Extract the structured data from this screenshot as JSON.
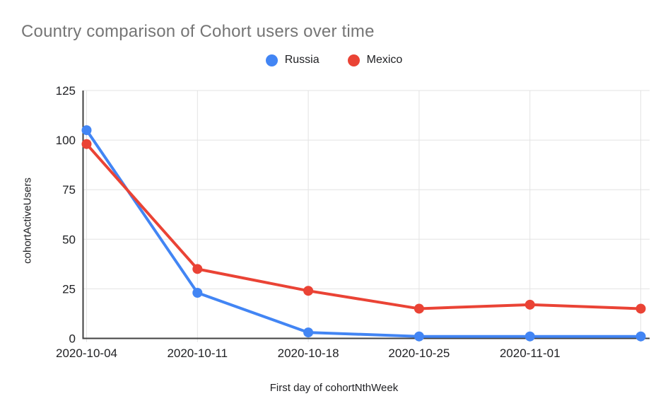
{
  "page": {
    "background": "#ffffff"
  },
  "chart_data": {
    "type": "line",
    "title": "Country comparison of Cohort users over time",
    "xlabel": "First day of cohortNthWeek",
    "ylabel": "cohortActiveUsers",
    "x_tick_labels": [
      "2020-10-04",
      "2020-10-11",
      "2020-10-18",
      "2020-10-25",
      "2020-11-01"
    ],
    "num_points": 6,
    "series": [
      {
        "name": "Russia",
        "color": "#4285f4",
        "values": [
          105,
          23,
          3,
          1,
          1,
          1
        ]
      },
      {
        "name": "Mexico",
        "color": "#ea4335",
        "values": [
          98,
          35,
          24,
          15,
          17,
          15
        ]
      }
    ],
    "ylim": [
      0,
      125
    ],
    "yticks": [
      0,
      25,
      50,
      75,
      100,
      125
    ],
    "grid": true,
    "legend_position": "top",
    "colors": {
      "title_text": "#757575",
      "axis_text": "#202124",
      "gridline": "#e3e3e3",
      "axis_line": "#424242"
    }
  }
}
